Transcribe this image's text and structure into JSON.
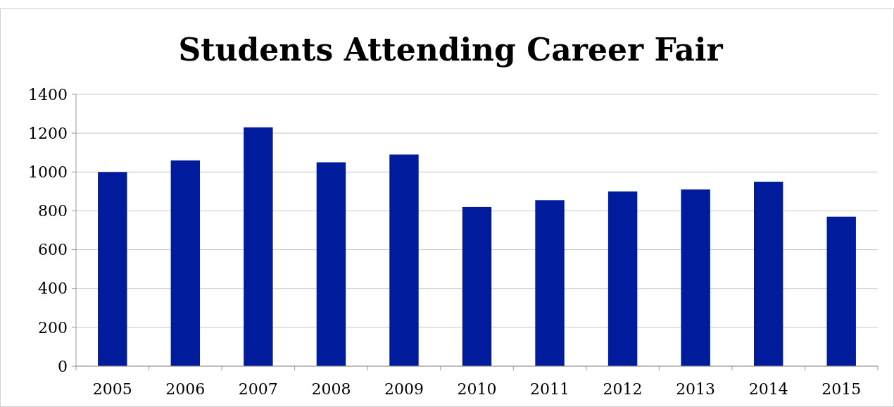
{
  "chart_data": {
    "type": "bar",
    "title": "Students Attending Career Fair",
    "categories": [
      "2005",
      "2006",
      "2007",
      "2008",
      "2009",
      "2010",
      "2011",
      "2012",
      "2013",
      "2014",
      "2015"
    ],
    "values": [
      1000,
      1060,
      1230,
      1050,
      1090,
      820,
      855,
      900,
      910,
      950,
      770
    ],
    "color": "#001c9c",
    "ylim": [
      0,
      1400
    ],
    "yticks": [
      0,
      200,
      400,
      600,
      800,
      1000,
      1200,
      1400
    ],
    "grid": "y"
  }
}
